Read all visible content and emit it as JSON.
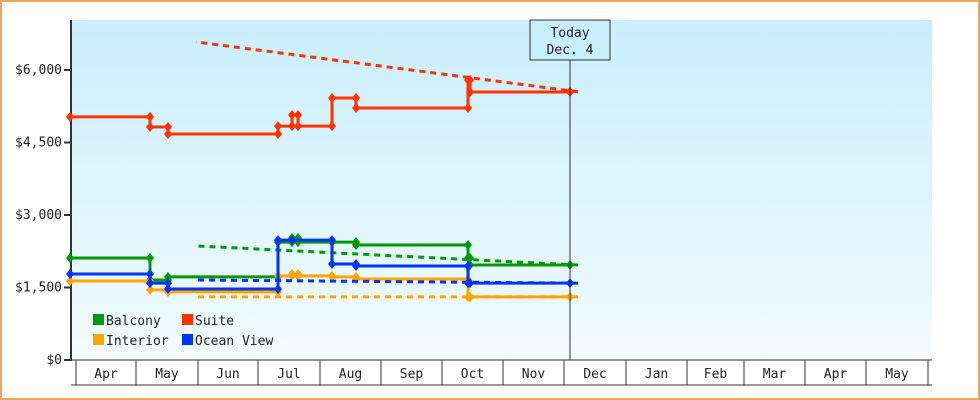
{
  "chart_data": {
    "type": "line",
    "step": true,
    "ylim": [
      0,
      7200
    ],
    "yticks": [
      0,
      1500,
      3000,
      4500,
      6000
    ],
    "ytick_labels": [
      "$0",
      "$1,500",
      "$3,000",
      "$4,500",
      "$6,000"
    ],
    "xtick_labels": [
      "Apr",
      "May",
      "Jun",
      "Jul",
      "Aug",
      "Sep",
      "Oct",
      "Nov",
      "Dec",
      "Jan",
      "Feb",
      "Mar",
      "Apr",
      "May"
    ],
    "today": {
      "label": "Today",
      "date_label": "Dec. 4",
      "date": "12-04"
    },
    "legend_placement": "bottom-left",
    "background_gradient": [
      "#c9eefb",
      "#f2fbff"
    ],
    "series": [
      {
        "name": "Balcony",
        "color": "#009900",
        "points": [
          [
            "03-29",
            2110
          ],
          [
            "05-08",
            1655
          ],
          [
            "05-17",
            1720
          ],
          [
            "07-11",
            2440
          ],
          [
            "07-18",
            2525
          ],
          [
            "07-21",
            2440
          ],
          [
            "08-07",
            2440
          ],
          [
            "08-19",
            2380
          ],
          [
            "10-14",
            2110
          ],
          [
            "10-15",
            1965
          ],
          [
            "12-04",
            1965
          ]
        ],
        "projection": [
          [
            "12-04",
            1965
          ],
          [
            "05-31",
            2360
          ]
        ]
      },
      {
        "name": "Suite",
        "color": "#ff3300",
        "points": [
          [
            "03-29",
            5030
          ],
          [
            "05-08",
            4820
          ],
          [
            "05-17",
            4676
          ],
          [
            "07-11",
            4840
          ],
          [
            "07-18",
            5070
          ],
          [
            "07-21",
            4840
          ],
          [
            "08-07",
            5420
          ],
          [
            "08-19",
            5215
          ],
          [
            "10-14",
            5790
          ],
          [
            "10-15",
            5545
          ],
          [
            "12-04",
            5550
          ]
        ],
        "projection": [
          [
            "12-04",
            5550
          ],
          [
            "05-31",
            6580
          ]
        ]
      },
      {
        "name": "Interior",
        "color": "#ffa500",
        "points": [
          [
            "03-29",
            1635
          ],
          [
            "05-08",
            1450
          ],
          [
            "05-17",
            1410
          ],
          [
            "07-11",
            1740
          ],
          [
            "07-18",
            1780
          ],
          [
            "07-21",
            1740
          ],
          [
            "08-07",
            1720
          ],
          [
            "08-19",
            1675
          ],
          [
            "10-14",
            1300
          ],
          [
            "10-15",
            1305
          ],
          [
            "12-04",
            1305
          ]
        ],
        "projection": [
          [
            "12-04",
            1305
          ],
          [
            "05-31",
            1305
          ]
        ]
      },
      {
        "name": "Ocean View",
        "color": "#0033ff",
        "points": [
          [
            "03-29",
            1780
          ],
          [
            "05-08",
            1590
          ],
          [
            "05-17",
            1470
          ],
          [
            "07-11",
            2480
          ],
          [
            "07-18",
            2480
          ],
          [
            "08-07",
            1985
          ],
          [
            "08-19",
            1945
          ],
          [
            "10-14",
            1590
          ],
          [
            "10-15",
            1590
          ],
          [
            "12-04",
            1590
          ]
        ],
        "projection": [
          [
            "12-04",
            1590
          ],
          [
            "05-31",
            1655
          ]
        ]
      }
    ]
  }
}
